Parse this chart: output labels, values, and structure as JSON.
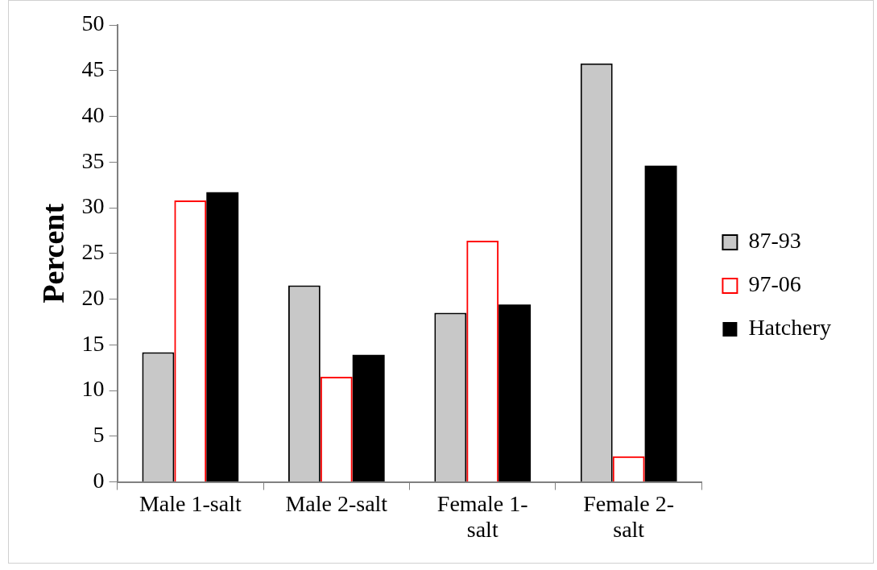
{
  "chart_data": {
    "type": "bar",
    "ylabel": "Percent",
    "categories": [
      "Male 1-salt",
      "Male 2-salt",
      "Female 1-salt",
      "Female 2-salt"
    ],
    "series": [
      {
        "name": "87-93",
        "color": "#c8c8c8",
        "values": [
          14.2,
          21.5,
          18.5,
          45.8
        ]
      },
      {
        "name": "97-06",
        "color": "#ff0000",
        "values": [
          30.8,
          11.5,
          26.4,
          2.8
        ]
      },
      {
        "name": "Hatchery",
        "color": "#000000",
        "values": [
          31.7,
          13.9,
          19.4,
          34.6
        ]
      }
    ],
    "ylim": [
      0,
      50
    ],
    "yticks": [
      0,
      5,
      10,
      15,
      20,
      25,
      30,
      35,
      40,
      45,
      50
    ],
    "grid": false,
    "legend": "right"
  }
}
